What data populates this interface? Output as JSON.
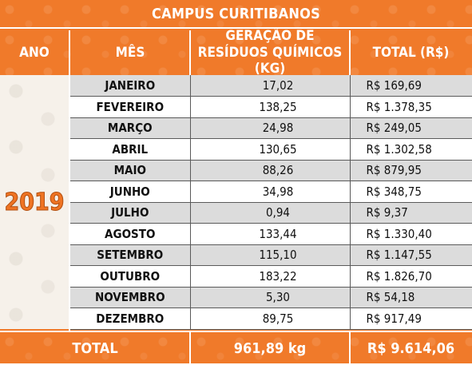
{
  "title": "CAMPUS CURITIBANOS",
  "headers": {
    "ano": "ANO",
    "mes": "MÊS",
    "geracao_line1": "GERAÇÃO DE",
    "geracao_line2": "RESÍDUOS QUÍMICOS (KG)",
    "total": "TOTAL (R$)"
  },
  "year": "2019",
  "rows": [
    {
      "month": "JANEIRO",
      "kg": "17,02",
      "value": "R$ 169,69"
    },
    {
      "month": "FEVEREIRO",
      "kg": "138,25",
      "value": "R$ 1.378,35"
    },
    {
      "month": "MARÇO",
      "kg": "24,98",
      "value": "R$ 249,05"
    },
    {
      "month": "ABRIL",
      "kg": "130,65",
      "value": "R$ 1.302,58"
    },
    {
      "month": "MAIO",
      "kg": "88,26",
      "value": "R$ 879,95"
    },
    {
      "month": "JUNHO",
      "kg": "34,98",
      "value": "R$ 348,75"
    },
    {
      "month": "JULHO",
      "kg": "0,94",
      "value": "R$ 9,37"
    },
    {
      "month": "AGOSTO",
      "kg": "133,44",
      "value": "R$ 1.330,40"
    },
    {
      "month": "SETEMBRO",
      "kg": "115,10",
      "value": "R$ 1.147,55"
    },
    {
      "month": "OUTUBRO",
      "kg": "183,22",
      "value": "R$ 1.826,70"
    },
    {
      "month": "NOVEMBRO",
      "kg": "5,30",
      "value": "R$ 54,18"
    },
    {
      "month": "DEZEMBRO",
      "kg": "89,75",
      "value": "R$ 917,49"
    }
  ],
  "totals": {
    "label": "TOTAL",
    "kg": "961,89 kg",
    "value": "R$ 9.614,06"
  },
  "colors": {
    "orange": "#f07a2a",
    "row_gray": "#dcdcdc",
    "row_white": "#ffffff",
    "year_text": "#ef7423"
  }
}
